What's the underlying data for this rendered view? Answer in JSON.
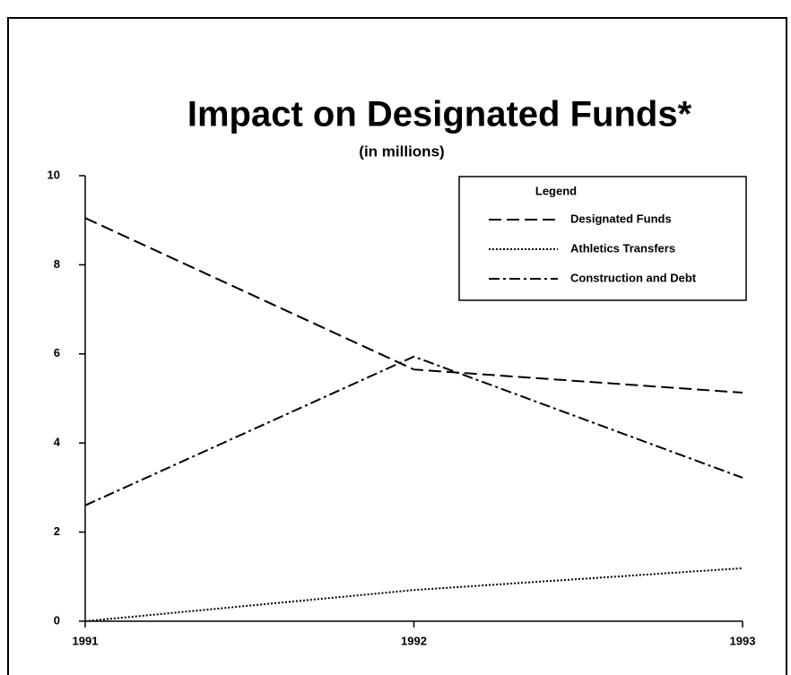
{
  "chart_data": {
    "type": "line",
    "title": "Impact on Designated Funds*",
    "subtitle": "(in millions)",
    "x": [
      1991,
      1992,
      1993
    ],
    "xlim": [
      1991,
      1993
    ],
    "xticks": [
      1991,
      1992,
      1993
    ],
    "ylim": [
      0,
      10
    ],
    "yticks": [
      0,
      2,
      4,
      6,
      8,
      10
    ],
    "legend_title": "Legend",
    "legend_position": "upper right",
    "series": [
      {
        "name": "Designated Funds",
        "color": "#000000",
        "line_style": "dashed",
        "values": [
          9.05,
          5.65,
          5.13
        ]
      },
      {
        "name": "Athletics Transfers",
        "color": "#000000",
        "line_style": "dotted",
        "values": [
          0,
          0.7,
          1.19
        ]
      },
      {
        "name": "Construction and Debt",
        "color": "#000000",
        "line_style": "dashdot",
        "values": [
          2.6,
          5.94,
          3.22
        ]
      }
    ]
  }
}
